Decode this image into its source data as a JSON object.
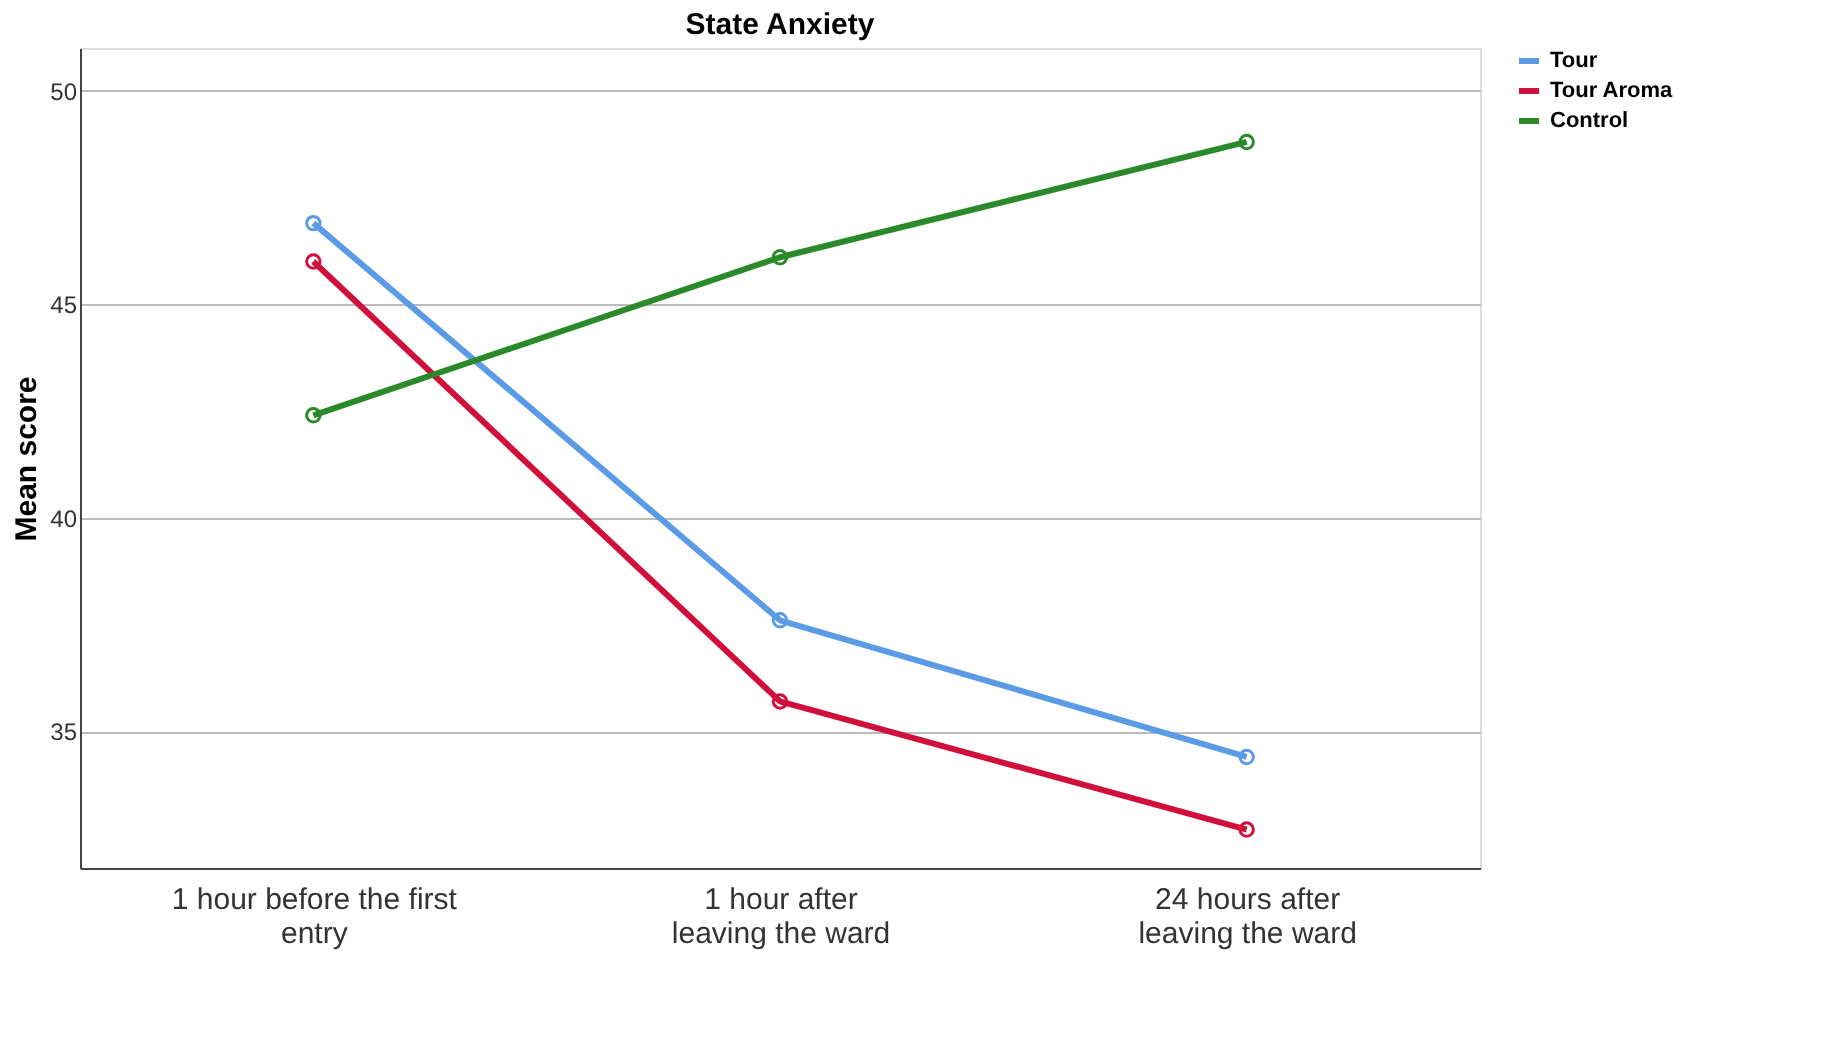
{
  "chart_data": {
    "type": "line",
    "title": "State Anxiety",
    "ylabel": "Mean score",
    "categories": [
      "1 hour before the first\nentry",
      "1 hour after\nleaving the ward",
      "24 hours after\nleaving the ward"
    ],
    "series": [
      {
        "name": "Tour",
        "color": "#5b9be6",
        "values": [
          46.9,
          37.6,
          34.4
        ]
      },
      {
        "name": "Tour Aroma",
        "color": "#d0103a",
        "values": [
          46.0,
          35.7,
          32.7
        ]
      },
      {
        "name": "Control",
        "color": "#2a8a2a",
        "values": [
          42.4,
          46.1,
          48.8
        ]
      }
    ],
    "ylim": [
      31.8,
      51.0
    ],
    "yticks": [
      35,
      40,
      45,
      50
    ],
    "grid": "y",
    "legend": "top right",
    "marker": "circle",
    "line_style": "solid"
  }
}
